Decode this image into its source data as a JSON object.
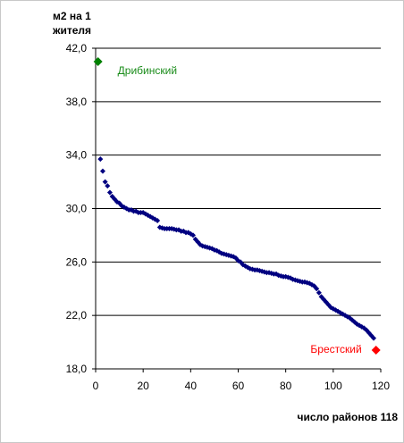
{
  "chart_data": {
    "type": "scatter",
    "ylabel_line1": "м2  на 1",
    "ylabel_line2": "жителя",
    "xlabel": "число районов 118",
    "xlim": [
      0,
      120
    ],
    "ylim": [
      18,
      42
    ],
    "x_ticks": [
      0,
      20,
      40,
      60,
      80,
      100,
      120
    ],
    "x_tick_labels": [
      "0",
      "20",
      "40",
      "60",
      "80",
      "100",
      "120"
    ],
    "y_ticks": [
      18,
      22,
      26,
      30,
      34,
      38,
      42
    ],
    "y_tick_labels": [
      "18,0",
      "22,0",
      "26,0",
      "30,0",
      "34,0",
      "38,0",
      "42,0"
    ],
    "grid": "horizontal",
    "series": [
      {
        "color": "#000080",
        "marker": "diamond",
        "x": [
          2,
          3,
          4,
          5,
          6,
          7,
          8,
          9,
          10,
          11,
          12,
          13,
          14,
          15,
          16,
          17,
          18,
          19,
          20,
          21,
          22,
          23,
          24,
          25,
          26,
          27,
          28,
          29,
          30,
          31,
          32,
          33,
          34,
          35,
          36,
          37,
          38,
          39,
          40,
          41,
          42,
          43,
          44,
          45,
          46,
          47,
          48,
          49,
          50,
          51,
          52,
          53,
          54,
          55,
          56,
          57,
          58,
          59,
          60,
          61,
          62,
          63,
          64,
          65,
          66,
          67,
          68,
          69,
          70,
          71,
          72,
          73,
          74,
          75,
          76,
          77,
          78,
          79,
          80,
          81,
          82,
          83,
          84,
          85,
          86,
          87,
          88,
          89,
          90,
          91,
          92,
          93,
          94,
          95,
          96,
          97,
          98,
          99,
          100,
          101,
          102,
          103,
          104,
          105,
          106,
          107,
          108,
          109,
          110,
          111,
          112,
          113,
          114,
          115,
          116,
          117
        ],
        "y": [
          33.7,
          32.8,
          32.0,
          31.7,
          31.2,
          30.9,
          30.7,
          30.5,
          30.4,
          30.2,
          30.1,
          30.0,
          29.9,
          29.9,
          29.8,
          29.8,
          29.7,
          29.7,
          29.7,
          29.6,
          29.5,
          29.4,
          29.3,
          29.2,
          29.1,
          28.6,
          28.55,
          28.5,
          28.5,
          28.5,
          28.5,
          28.45,
          28.4,
          28.4,
          28.3,
          28.3,
          28.2,
          28.2,
          28.1,
          28.0,
          27.7,
          27.5,
          27.3,
          27.2,
          27.15,
          27.1,
          27.05,
          27.0,
          26.9,
          26.85,
          26.75,
          26.65,
          26.6,
          26.55,
          26.5,
          26.45,
          26.4,
          26.3,
          26.1,
          26.0,
          25.8,
          25.7,
          25.6,
          25.5,
          25.45,
          25.4,
          25.4,
          25.35,
          25.3,
          25.25,
          25.2,
          25.2,
          25.15,
          25.1,
          25.1,
          25.0,
          24.95,
          24.9,
          24.9,
          24.85,
          24.8,
          24.7,
          24.65,
          24.6,
          24.55,
          24.5,
          24.5,
          24.45,
          24.4,
          24.3,
          24.2,
          24.0,
          23.7,
          23.4,
          23.2,
          23.0,
          22.8,
          22.6,
          22.5,
          22.4,
          22.3,
          22.2,
          22.1,
          22.0,
          21.9,
          21.8,
          21.65,
          21.5,
          21.35,
          21.25,
          21.15,
          21.05,
          20.9,
          20.7,
          20.5,
          20.3
        ]
      }
    ],
    "highlights": [
      {
        "x": 1,
        "y": 41.0,
        "label": "Дрибинский",
        "color": "#008000"
      },
      {
        "x": 118,
        "y": 19.4,
        "label": "Брестский",
        "color": "#ff0000"
      }
    ]
  }
}
